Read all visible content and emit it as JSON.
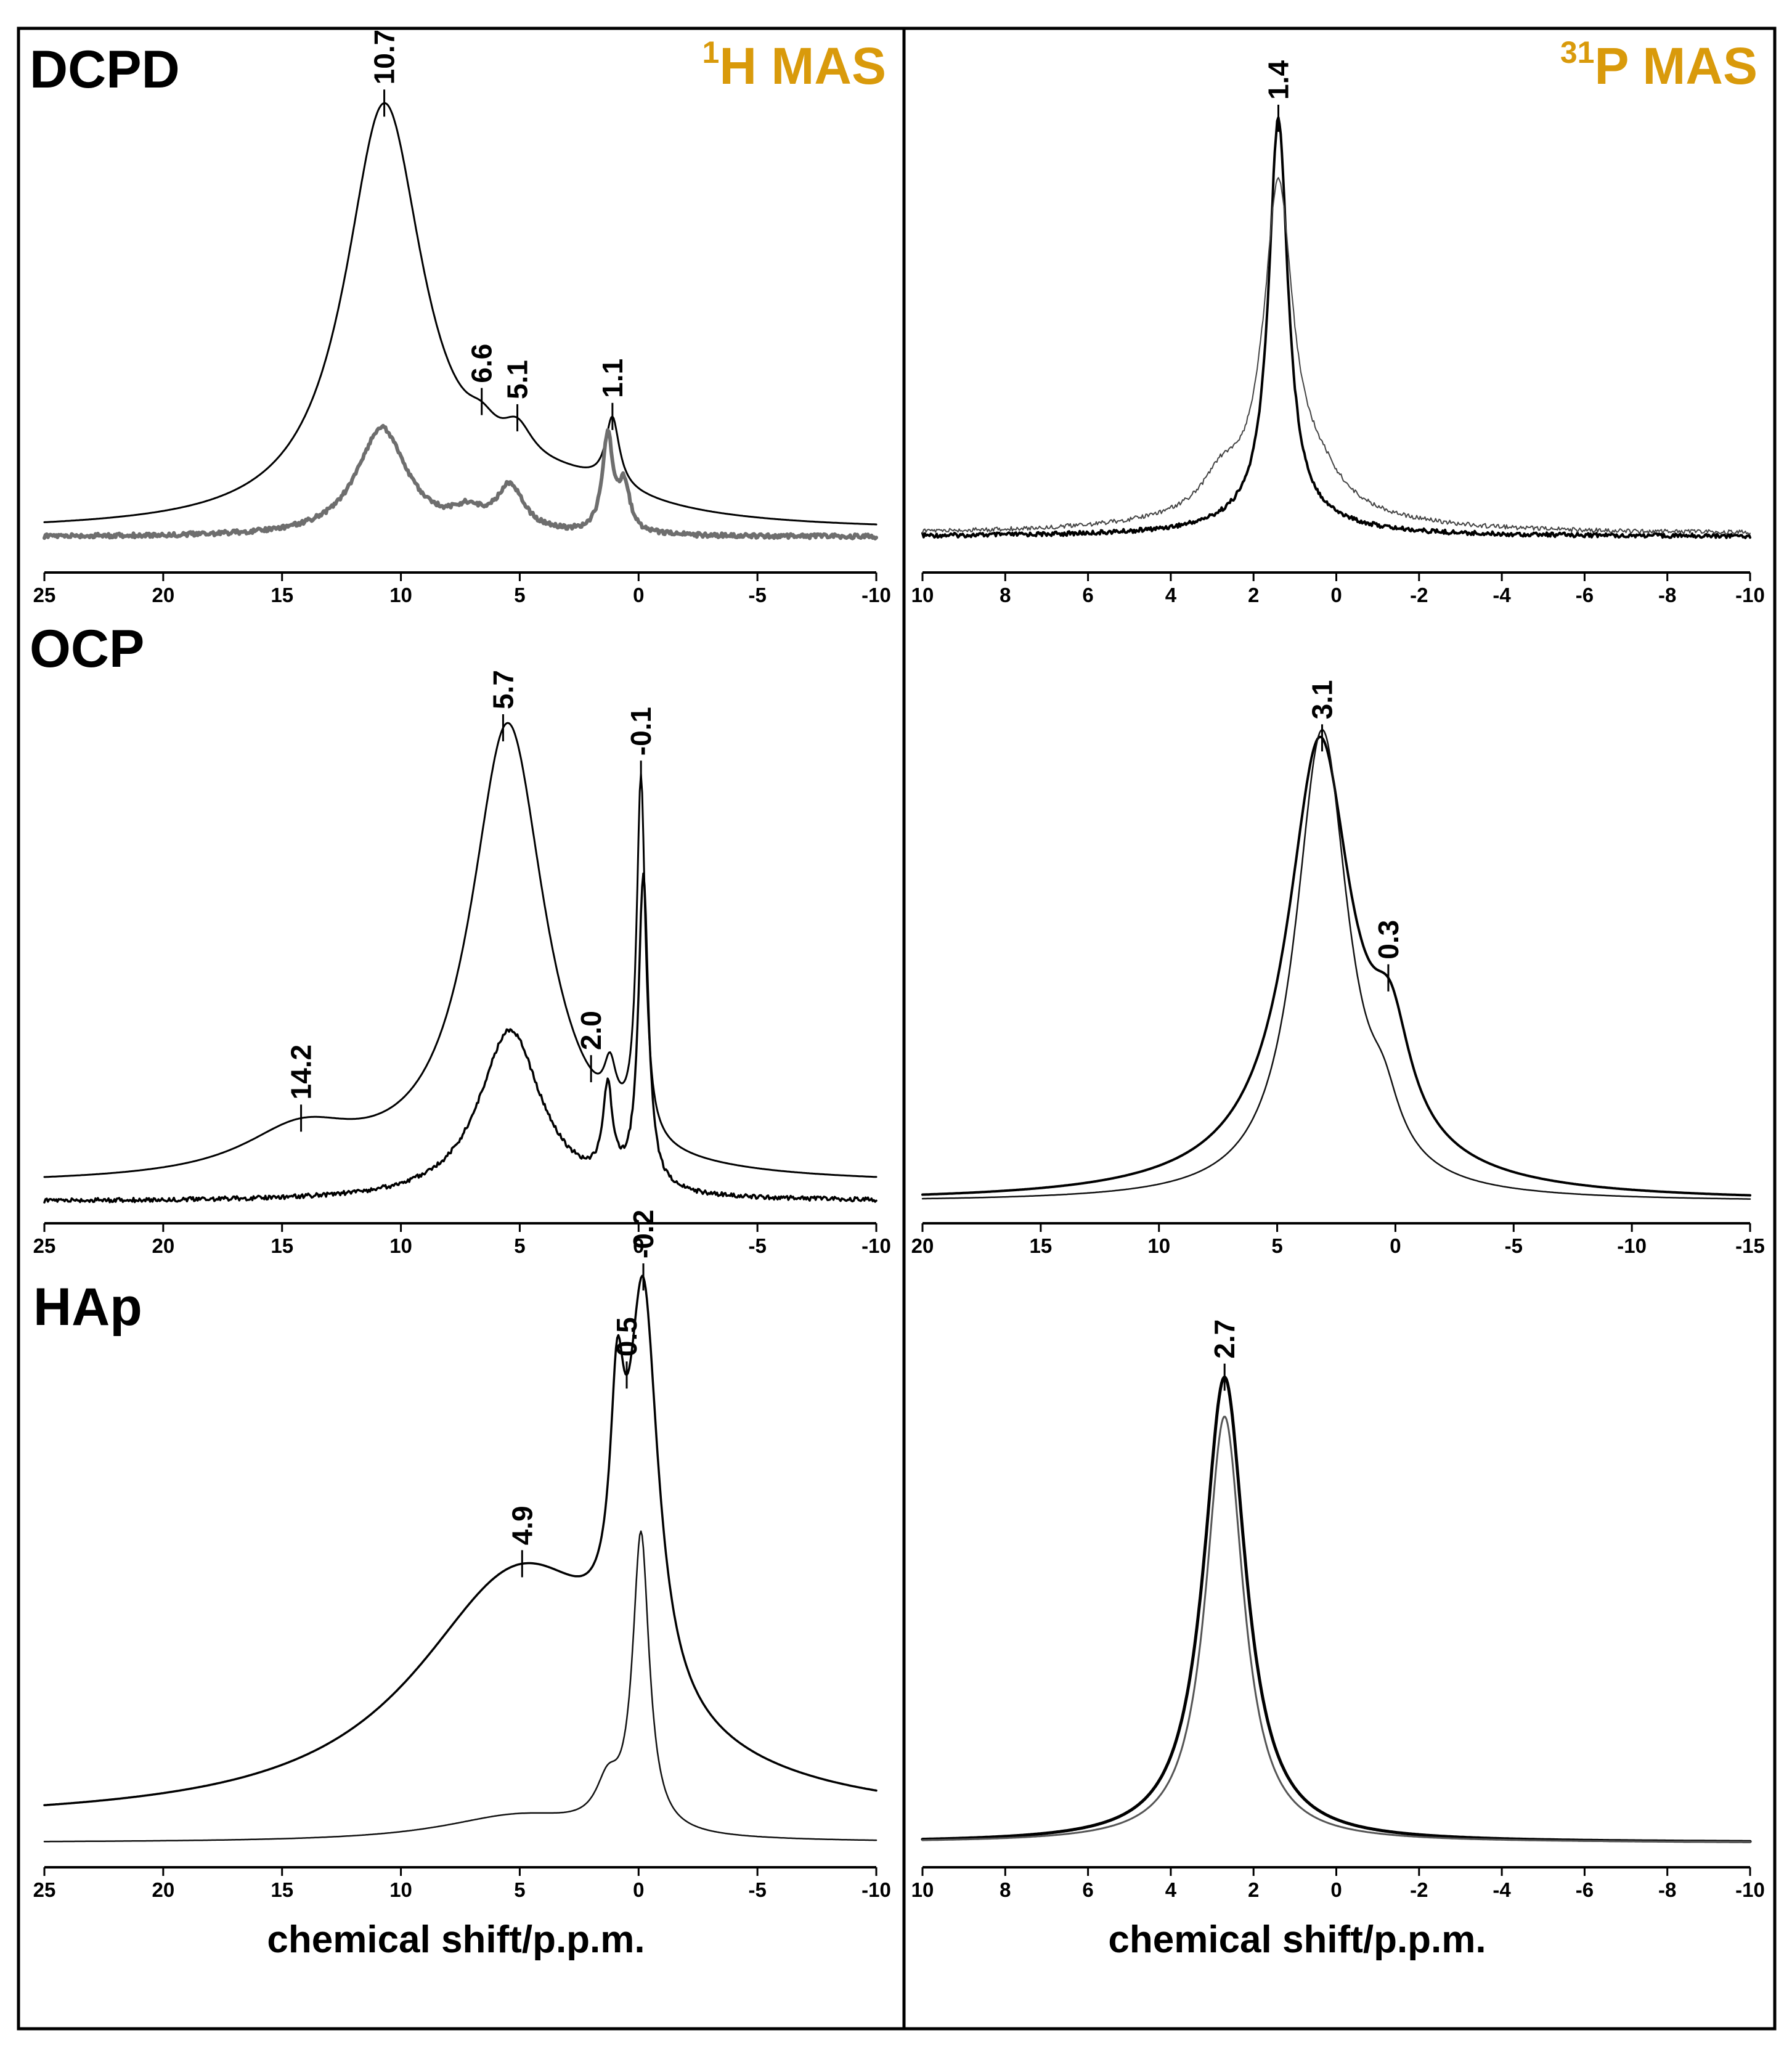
{
  "colors": {
    "accent": "#D99A0B",
    "frame": "#000000",
    "trace_main": "#000000",
    "trace_grey": "#6e6e6e",
    "trace_light": "#444444"
  },
  "figure": {
    "samples": [
      "DCPD",
      "OCP",
      "HAp"
    ],
    "nuclei": [
      {
        "sup": "1",
        "name": "H MAS"
      },
      {
        "sup": "31",
        "name": "P MAS"
      }
    ],
    "xlabels": [
      "chemical shift/p.p.m.",
      "chemical shift/p.p.m."
    ]
  },
  "chart_data": [
    {
      "id": "dcpd-1h",
      "type": "line",
      "title": "DCPD 1H MAS",
      "xlabel": "",
      "xlim": [
        25,
        -10
      ],
      "xticks": [
        25,
        20,
        15,
        10,
        5,
        0,
        -5,
        -10
      ],
      "xtick_labels": [
        "25",
        "20",
        "15",
        "10",
        "5",
        "0",
        "-5",
        "-10"
      ],
      "peak_labels": [
        {
          "x": 10.7,
          "text": "10.7"
        },
        {
          "x": 6.6,
          "text": "6.6"
        },
        {
          "x": 5.1,
          "text": "5.1"
        },
        {
          "x": 1.1,
          "text": "1.1"
        }
      ],
      "series": [
        {
          "name": "upper",
          "baseline": 0.03,
          "peaks": [
            [
              10.7,
              0.74,
              2.0
            ],
            [
              6.6,
              0.04,
              0.8
            ],
            [
              5.1,
              0.06,
              0.8
            ],
            [
              1.1,
              0.12,
              0.35
            ],
            [
              3.0,
              0.06,
              4.0
            ]
          ]
        },
        {
          "name": "lower",
          "baseline": 0.02,
          "noise": true,
          "peaks": [
            [
              10.8,
              0.19,
              1.3
            ],
            [
              7.2,
              0.03,
              0.8
            ],
            [
              5.4,
              0.08,
              0.7
            ],
            [
              1.3,
              0.17,
              0.28
            ],
            [
              0.6,
              0.08,
              0.28
            ]
          ]
        }
      ]
    },
    {
      "id": "dcpd-31p",
      "type": "line",
      "title": "DCPD 31P MAS",
      "xlabel": "",
      "xlim": [
        10,
        -10
      ],
      "xticks": [
        10,
        8,
        6,
        4,
        2,
        0,
        -2,
        -4,
        -6,
        -8,
        -10
      ],
      "xtick_labels": [
        "10",
        "8",
        "6",
        "4",
        "2",
        "0",
        "-2",
        "-4",
        "-6",
        "-8",
        "-10"
      ],
      "peak_labels": [
        {
          "x": 1.4,
          "text": "1.4"
        }
      ],
      "series": [
        {
          "name": "main",
          "baseline": 0.025,
          "noise": true,
          "peaks": [
            [
              1.4,
              0.83,
              0.28
            ],
            [
              1.4,
              0.04,
              1.6
            ]
          ]
        },
        {
          "name": "broad",
          "baseline": 0.03,
          "noise": true,
          "peaks": [
            [
              1.4,
              0.66,
              0.42
            ],
            [
              2.8,
              0.06,
              0.5
            ],
            [
              0.4,
              0.05,
              0.6
            ],
            [
              1.4,
              0.06,
              2.4
            ]
          ]
        }
      ]
    },
    {
      "id": "ocp-1h",
      "type": "line",
      "title": "OCP 1H MAS",
      "xlabel": "",
      "xlim": [
        25,
        -10
      ],
      "xticks": [
        25,
        20,
        15,
        10,
        5,
        0,
        -5,
        -10
      ],
      "xtick_labels": [
        "25",
        "20",
        "15",
        "10",
        "5",
        "0",
        "-5",
        "-10"
      ],
      "peak_labels": [
        {
          "x": 5.7,
          "text": "5.7"
        },
        {
          "x": -0.1,
          "text": "-0.1"
        },
        {
          "x": 2.0,
          "text": "2.0"
        },
        {
          "x": 14.2,
          "text": "14.2"
        }
      ],
      "series": [
        {
          "name": "upper",
          "baseline": 0.03,
          "peaks": [
            [
              5.5,
              0.8,
              1.9
            ],
            [
              14.2,
              0.08,
              3.0
            ],
            [
              -0.1,
              0.63,
              0.22
            ],
            [
              1.2,
              0.08,
              0.3
            ]
          ]
        },
        {
          "name": "lower",
          "baseline": 0.0,
          "noise": true,
          "peaks": [
            [
              5.4,
              0.3,
              1.6
            ],
            [
              -0.2,
              0.55,
              0.25
            ],
            [
              1.3,
              0.16,
              0.25
            ]
          ]
        }
      ]
    },
    {
      "id": "ocp-31p",
      "type": "line",
      "title": "OCP 31P MAS",
      "xlabel": "",
      "xlim": [
        20,
        -15
      ],
      "xticks": [
        20,
        15,
        10,
        5,
        0,
        -5,
        -10,
        -15
      ],
      "xtick_labels": [
        "20",
        "15",
        "10",
        "5",
        "0",
        "-5",
        "-10",
        "-15"
      ],
      "peak_labels": [
        {
          "x": 3.1,
          "text": "3.1"
        },
        {
          "x": 0.3,
          "text": "0.3"
        }
      ],
      "series": [
        {
          "name": "outer",
          "baseline": 0.0,
          "peaks": [
            [
              3.2,
              0.64,
              1.6
            ],
            [
              0.2,
              0.15,
              1.0
            ],
            [
              3.0,
              0.06,
              5.0
            ]
          ]
        },
        {
          "name": "inner",
          "baseline": 0.0,
          "peaks": [
            [
              3.1,
              0.72,
              1.35
            ],
            [
              0.5,
              0.07,
              0.8
            ]
          ]
        }
      ]
    },
    {
      "id": "hap-1h",
      "type": "line",
      "title": "HAp 1H MAS",
      "xlabel": "chemical shift/p.p.m.",
      "xlim": [
        25,
        -10
      ],
      "xticks": [
        25,
        20,
        15,
        10,
        5,
        0,
        -5,
        -10
      ],
      "xtick_labels": [
        "25",
        "20",
        "15",
        "10",
        "5",
        "0",
        "-5",
        "-10"
      ],
      "peak_labels": [
        {
          "x": -0.2,
          "text": "-0.2"
        },
        {
          "x": 0.5,
          "text": "0.5"
        },
        {
          "x": 4.9,
          "text": "4.9"
        }
      ],
      "series": [
        {
          "name": "upper",
          "baseline": 0.03,
          "peaks": [
            [
              4.9,
              0.38,
              5.5
            ],
            [
              -0.2,
              0.6,
              0.75
            ],
            [
              0.9,
              0.3,
              0.35
            ]
          ]
        },
        {
          "name": "lower",
          "baseline": 0.0,
          "peaks": [
            [
              -0.1,
              0.45,
              0.42
            ],
            [
              1.3,
              0.06,
              0.6
            ],
            [
              5.0,
              0.04,
              4.0
            ]
          ]
        }
      ]
    },
    {
      "id": "hap-31p",
      "type": "line",
      "title": "HAp 31P MAS",
      "xlabel": "chemical shift/p.p.m.",
      "xlim": [
        10,
        -10
      ],
      "xticks": [
        10,
        8,
        6,
        4,
        2,
        0,
        -2,
        -4,
        -6,
        -8,
        -10
      ],
      "xtick_labels": [
        "10",
        "8",
        "6",
        "4",
        "2",
        "0",
        "-2",
        "-4",
        "-6",
        "-8",
        "-10"
      ],
      "peak_labels": [
        {
          "x": 2.7,
          "text": "2.7"
        }
      ],
      "series": [
        {
          "name": "outer",
          "baseline": 0.0,
          "peaks": [
            [
              2.7,
              0.83,
              0.62
            ]
          ]
        },
        {
          "name": "inner",
          "baseline": 0.0,
          "peaks": [
            [
              2.7,
              0.76,
              0.55
            ]
          ]
        }
      ]
    }
  ]
}
